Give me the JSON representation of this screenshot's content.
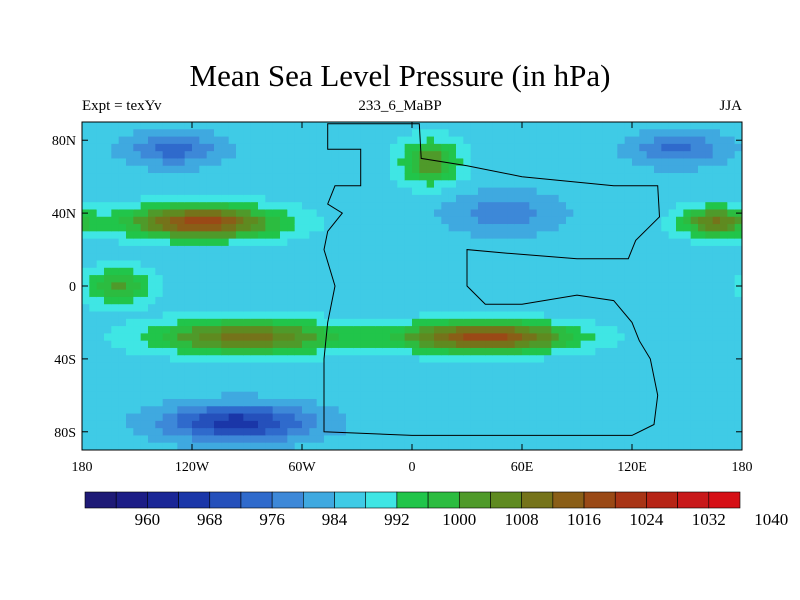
{
  "title": "Mean Sea Level Pressure (in hPa)",
  "subtitle_left": "Expt = texYv",
  "subtitle_center": "233_6_MaBP",
  "subtitle_right": "JJA",
  "x_ticks": [
    {
      "value": -180,
      "label": "180"
    },
    {
      "value": -120,
      "label": "120W"
    },
    {
      "value": -60,
      "label": "60W"
    },
    {
      "value": 0,
      "label": "0"
    },
    {
      "value": 60,
      "label": "60E"
    },
    {
      "value": 120,
      "label": "120E"
    },
    {
      "value": 180,
      "label": "180"
    }
  ],
  "y_ticks": [
    {
      "value": 80,
      "label": "80N"
    },
    {
      "value": 40,
      "label": "40N"
    },
    {
      "value": 0,
      "label": "0"
    },
    {
      "value": -40,
      "label": "40S"
    },
    {
      "value": -80,
      "label": "80S"
    }
  ],
  "colorbar": {
    "colors": [
      "#1e1a76",
      "#1c1d86",
      "#1a2696",
      "#1a36a8",
      "#2550bb",
      "#2f6acc",
      "#3d88d8",
      "#3fa9e0",
      "#3fcbe6",
      "#3fe6e4",
      "#21c54a",
      "#2cbc40",
      "#4f9a2a",
      "#5f8a20",
      "#75731a",
      "#8a5e17",
      "#9a4916",
      "#a83416",
      "#b62416",
      "#c8181a",
      "#d60f16"
    ],
    "labels": [
      {
        "index": 2,
        "text": "960"
      },
      {
        "index": 4,
        "text": "968"
      },
      {
        "index": 6,
        "text": "976"
      },
      {
        "index": 8,
        "text": "984"
      },
      {
        "index": 10,
        "text": "992"
      },
      {
        "index": 12,
        "text": "1000"
      },
      {
        "index": 14,
        "text": "1008"
      },
      {
        "index": 16,
        "text": "1016"
      },
      {
        "index": 18,
        "text": "1024"
      },
      {
        "index": 20,
        "text": "1032"
      },
      {
        "index": 22,
        "text": "1040"
      }
    ]
  },
  "field": {
    "background_level": 990,
    "systems": [
      {
        "lon": -130,
        "lat": 75,
        "slon": 25,
        "slat": 9,
        "amp": -12
      },
      {
        "lon": 145,
        "lat": 75,
        "slon": 25,
        "slat": 9,
        "amp": -11
      },
      {
        "lon": 50,
        "lat": 40,
        "slon": 30,
        "slat": 11,
        "amp": -9
      },
      {
        "lon": -115,
        "lat": 35,
        "slon": 40,
        "slat": 9,
        "amp": 32
      },
      {
        "lon": 165,
        "lat": 35,
        "slon": 18,
        "slat": 8,
        "amp": 22
      },
      {
        "lon": 10,
        "lat": 68,
        "slon": 16,
        "slat": 12,
        "amp": 17
      },
      {
        "lon": -90,
        "lat": -28,
        "slon": 50,
        "slat": 9,
        "amp": 24
      },
      {
        "lon": 40,
        "lat": -28,
        "slon": 45,
        "slat": 8,
        "amp": 32
      },
      {
        "lon": -95,
        "lat": -75,
        "slon": 40,
        "slat": 10,
        "amp": -20
      },
      {
        "lon": -160,
        "lat": 0,
        "slon": 18,
        "slat": 10,
        "amp": 15
      }
    ]
  },
  "landmass": [
    [
      -46,
      89
    ],
    [
      -46,
      75
    ],
    [
      -28,
      75
    ],
    [
      -28,
      55
    ],
    [
      -42,
      55
    ],
    [
      -46,
      45
    ],
    [
      -38,
      40
    ],
    [
      -46,
      30
    ],
    [
      -48,
      20
    ],
    [
      -42,
      0
    ],
    [
      -46,
      -20
    ],
    [
      -48,
      -40
    ],
    [
      -48,
      -60
    ],
    [
      -48,
      -80
    ],
    [
      0,
      -82
    ],
    [
      60,
      -82
    ],
    [
      120,
      -82
    ],
    [
      132,
      -76
    ],
    [
      134,
      -60
    ],
    [
      130,
      -40
    ],
    [
      124,
      -30
    ],
    [
      120,
      -20
    ],
    [
      110,
      -8
    ],
    [
      90,
      -5
    ],
    [
      60,
      -10
    ],
    [
      40,
      -10
    ],
    [
      30,
      0
    ],
    [
      30,
      20
    ],
    [
      52,
      18
    ],
    [
      90,
      15
    ],
    [
      118,
      15
    ],
    [
      122,
      25
    ],
    [
      135,
      38
    ],
    [
      134,
      55
    ],
    [
      110,
      55
    ],
    [
      60,
      60
    ],
    [
      30,
      66
    ],
    [
      5,
      70
    ],
    [
      4,
      89
    ]
  ]
}
